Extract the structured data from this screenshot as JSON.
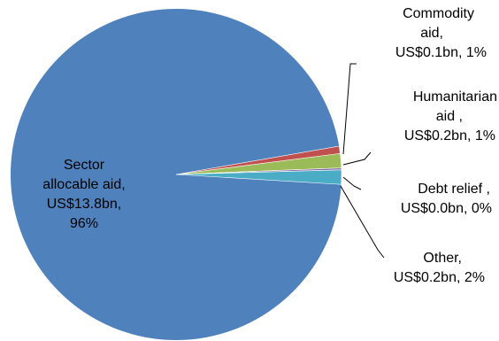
{
  "chart_data": {
    "type": "pie",
    "slices": [
      {
        "name": "Sector allocable aid",
        "value_bn": 13.8,
        "percent": 96,
        "color": "#4f81bd",
        "label_lines": [
          "Sector",
          "allocable aid,",
          "US$13.8bn,",
          "96%"
        ]
      },
      {
        "name": "Commodity aid",
        "value_bn": 0.1,
        "percent": 1,
        "color": "#c0504d",
        "label_lines": [
          "Commodity",
          "aid,",
          "US$0.1bn, 1%"
        ]
      },
      {
        "name": "Humanitarian aid",
        "value_bn": 0.2,
        "percent": 1,
        "color": "#9bbb59",
        "label_lines": [
          "Humanitarian",
          "aid ,",
          "US$0.2bn, 1%"
        ]
      },
      {
        "name": "Debt relief",
        "value_bn": 0.0,
        "percent": 0,
        "color": "#8064a2",
        "label_lines": [
          "Debt relief ,",
          "US$0.0bn, 0%"
        ]
      },
      {
        "name": "Other",
        "value_bn": 0.2,
        "percent": 2,
        "color": "#4bacc6",
        "label_lines": [
          "Other,",
          "US$0.2bn, 2%"
        ]
      }
    ]
  }
}
